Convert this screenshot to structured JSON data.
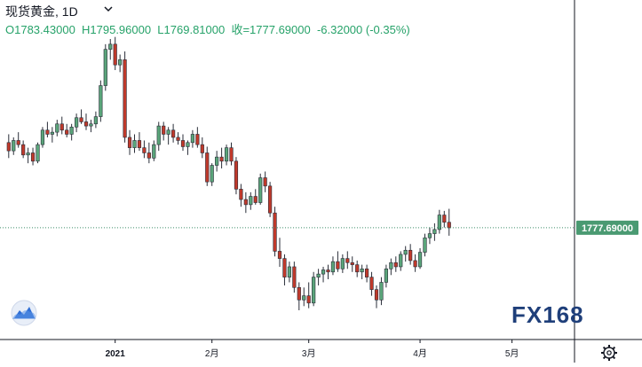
{
  "header": {
    "instrument": "现货黄金",
    "interval": "1D",
    "ohlc_text": "O1783.43000  H1795.96000  L1769.81000  收=1777.69000  -6.32000 (-0.35%)"
  },
  "price_tag": "1777.69000",
  "logo_text": "FX168",
  "colors": {
    "up": "#5aa57a",
    "down": "#c0392b",
    "line": "#3d8f6a",
    "axis": "#131722"
  },
  "icons": {
    "settings": "gear-icon",
    "brand": "cloud-chart-icon"
  },
  "chart_data": {
    "type": "candlestick",
    "y_visible_range": [
      1695,
      1830
    ],
    "last_price": 1777.69,
    "x_tick_labels": [
      {
        "label": "2021",
        "index": 22
      },
      {
        "label": "2月",
        "index": 42
      },
      {
        "label": "3月",
        "index": 62
      },
      {
        "label": "4月",
        "index": 85
      },
      {
        "label": "5月",
        "index": 104
      }
    ],
    "candles": [
      [
        1860,
        1868,
        1845,
        1852
      ],
      [
        1852,
        1865,
        1848,
        1862
      ],
      [
        1862,
        1870,
        1855,
        1858
      ],
      [
        1858,
        1862,
        1845,
        1848
      ],
      [
        1848,
        1855,
        1840,
        1850
      ],
      [
        1850,
        1855,
        1838,
        1842
      ],
      [
        1842,
        1860,
        1840,
        1858
      ],
      [
        1858,
        1875,
        1855,
        1872
      ],
      [
        1872,
        1880,
        1865,
        1868
      ],
      [
        1868,
        1875,
        1860,
        1870
      ],
      [
        1870,
        1882,
        1866,
        1878
      ],
      [
        1878,
        1885,
        1868,
        1872
      ],
      [
        1872,
        1878,
        1865,
        1868
      ],
      [
        1868,
        1878,
        1862,
        1875
      ],
      [
        1875,
        1888,
        1870,
        1884
      ],
      [
        1884,
        1892,
        1878,
        1880
      ],
      [
        1880,
        1888,
        1872,
        1876
      ],
      [
        1876,
        1882,
        1870,
        1878
      ],
      [
        1878,
        1890,
        1874,
        1885
      ],
      [
        1885,
        1920,
        1880,
        1915
      ],
      [
        1915,
        1955,
        1910,
        1950
      ],
      [
        1950,
        1960,
        1940,
        1955
      ],
      [
        1955,
        1962,
        1930,
        1935
      ],
      [
        1935,
        1945,
        1928,
        1940
      ],
      [
        1940,
        1948,
        1860,
        1865
      ],
      [
        1865,
        1872,
        1848,
        1855
      ],
      [
        1855,
        1868,
        1850,
        1862
      ],
      [
        1862,
        1870,
        1852,
        1855
      ],
      [
        1855,
        1862,
        1845,
        1850
      ],
      [
        1850,
        1860,
        1840,
        1845
      ],
      [
        1845,
        1862,
        1842,
        1858
      ],
      [
        1858,
        1880,
        1852,
        1876
      ],
      [
        1876,
        1880,
        1862,
        1868
      ],
      [
        1868,
        1875,
        1858,
        1872
      ],
      [
        1872,
        1878,
        1860,
        1865
      ],
      [
        1865,
        1870,
        1858,
        1862
      ],
      [
        1862,
        1868,
        1852,
        1856
      ],
      [
        1856,
        1862,
        1848,
        1860
      ],
      [
        1860,
        1872,
        1855,
        1868
      ],
      [
        1868,
        1875,
        1855,
        1858
      ],
      [
        1858,
        1865,
        1845,
        1850
      ],
      [
        1850,
        1856,
        1818,
        1822
      ],
      [
        1822,
        1840,
        1818,
        1838
      ],
      [
        1838,
        1852,
        1832,
        1846
      ],
      [
        1846,
        1855,
        1835,
        1842
      ],
      [
        1842,
        1858,
        1838,
        1855
      ],
      [
        1855,
        1860,
        1838,
        1842
      ],
      [
        1842,
        1846,
        1810,
        1815
      ],
      [
        1815,
        1820,
        1798,
        1805
      ],
      [
        1805,
        1812,
        1792,
        1800
      ],
      [
        1800,
        1812,
        1795,
        1808
      ],
      [
        1808,
        1815,
        1800,
        1802
      ],
      [
        1802,
        1830,
        1800,
        1826
      ],
      [
        1826,
        1832,
        1812,
        1818
      ],
      [
        1818,
        1822,
        1788,
        1792
      ],
      [
        1792,
        1798,
        1750,
        1755
      ],
      [
        1755,
        1768,
        1740,
        1748
      ],
      [
        1748,
        1752,
        1722,
        1730
      ],
      [
        1730,
        1745,
        1725,
        1740
      ],
      [
        1740,
        1745,
        1715,
        1720
      ],
      [
        1720,
        1725,
        1698,
        1708
      ],
      [
        1708,
        1720,
        1702,
        1712
      ],
      [
        1712,
        1725,
        1700,
        1705
      ],
      [
        1705,
        1735,
        1702,
        1730
      ],
      [
        1730,
        1738,
        1722,
        1733
      ],
      [
        1733,
        1740,
        1725,
        1737
      ],
      [
        1737,
        1742,
        1728,
        1735
      ],
      [
        1735,
        1750,
        1732,
        1745
      ],
      [
        1745,
        1755,
        1735,
        1738
      ],
      [
        1738,
        1752,
        1734,
        1748
      ],
      [
        1748,
        1755,
        1738,
        1744
      ],
      [
        1744,
        1750,
        1735,
        1742
      ],
      [
        1742,
        1746,
        1730,
        1735
      ],
      [
        1735,
        1742,
        1728,
        1738
      ],
      [
        1738,
        1742,
        1725,
        1730
      ],
      [
        1730,
        1735,
        1712,
        1718
      ],
      [
        1718,
        1722,
        1700,
        1708
      ],
      [
        1708,
        1730,
        1703,
        1725
      ],
      [
        1725,
        1742,
        1720,
        1738
      ],
      [
        1738,
        1748,
        1732,
        1744
      ],
      [
        1744,
        1750,
        1735,
        1740
      ],
      [
        1740,
        1755,
        1736,
        1752
      ],
      [
        1752,
        1760,
        1745,
        1756
      ],
      [
        1756,
        1762,
        1742,
        1746
      ],
      [
        1746,
        1752,
        1735,
        1740
      ],
      [
        1740,
        1758,
        1738,
        1754
      ],
      [
        1754,
        1772,
        1750,
        1768
      ],
      [
        1768,
        1778,
        1762,
        1772
      ],
      [
        1772,
        1782,
        1765,
        1776
      ],
      [
        1776,
        1795,
        1772,
        1790
      ],
      [
        1790,
        1794,
        1778,
        1783
      ],
      [
        1783,
        1796,
        1770,
        1777.69
      ]
    ]
  }
}
